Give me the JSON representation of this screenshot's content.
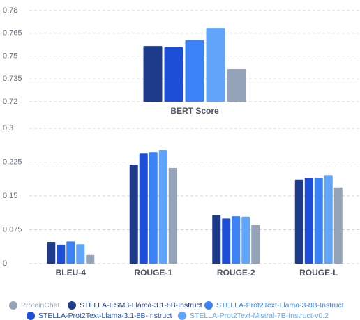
{
  "chart_data": [
    {
      "type": "bar",
      "categories": [
        "BERT Score"
      ],
      "ylim": [
        0.72,
        0.78
      ],
      "yticks": [
        0.72,
        0.735,
        0.75,
        0.765,
        0.78
      ],
      "grid": true,
      "series": [
        {
          "color": "#1e3a8a",
          "values": [
            0.7566
          ]
        },
        {
          "color": "#1d4ed8",
          "values": [
            0.7557
          ]
        },
        {
          "color": "#3b82f6",
          "values": [
            0.7603
          ]
        },
        {
          "color": "#60a5fa",
          "values": [
            0.7685
          ]
        },
        {
          "color": "#94a3b8",
          "values": [
            0.7415
          ]
        }
      ]
    },
    {
      "type": "bar",
      "categories": [
        "BLEU-4",
        "ROUGE-1",
        "ROUGE-2",
        "ROUGE-L"
      ],
      "ylim": [
        0,
        0.3
      ],
      "yticks": [
        0,
        0.075,
        0.15,
        0.225,
        0.3
      ],
      "grid": true,
      "series": [
        {
          "name": "STELLA-ESM3-Llama-3.1-8B-Instruct",
          "color": "#1e3a8a",
          "values": [
            0.048,
            0.2196,
            0.107,
            0.186
          ]
        },
        {
          "name": "STELLA-Prot2Text-Llama-3.1-8B-Instruct",
          "color": "#1d4ed8",
          "values": [
            0.042,
            0.244,
            0.1,
            0.19
          ]
        },
        {
          "name": "STELLA-Prot2Text-Llama-3-8B-Instruct",
          "color": "#3b82f6",
          "values": [
            0.049,
            0.247,
            0.105,
            0.19
          ]
        },
        {
          "name": "STELLA-Prot2Text-Mistral-7B-Instruct-v0.2",
          "color": "#60a5fa",
          "values": [
            0.043,
            0.252,
            0.104,
            0.196
          ]
        },
        {
          "name": "ProteinChat",
          "color": "#94a3b8",
          "values": [
            0.019,
            0.212,
            0.085,
            0.169
          ]
        }
      ]
    }
  ]
}
